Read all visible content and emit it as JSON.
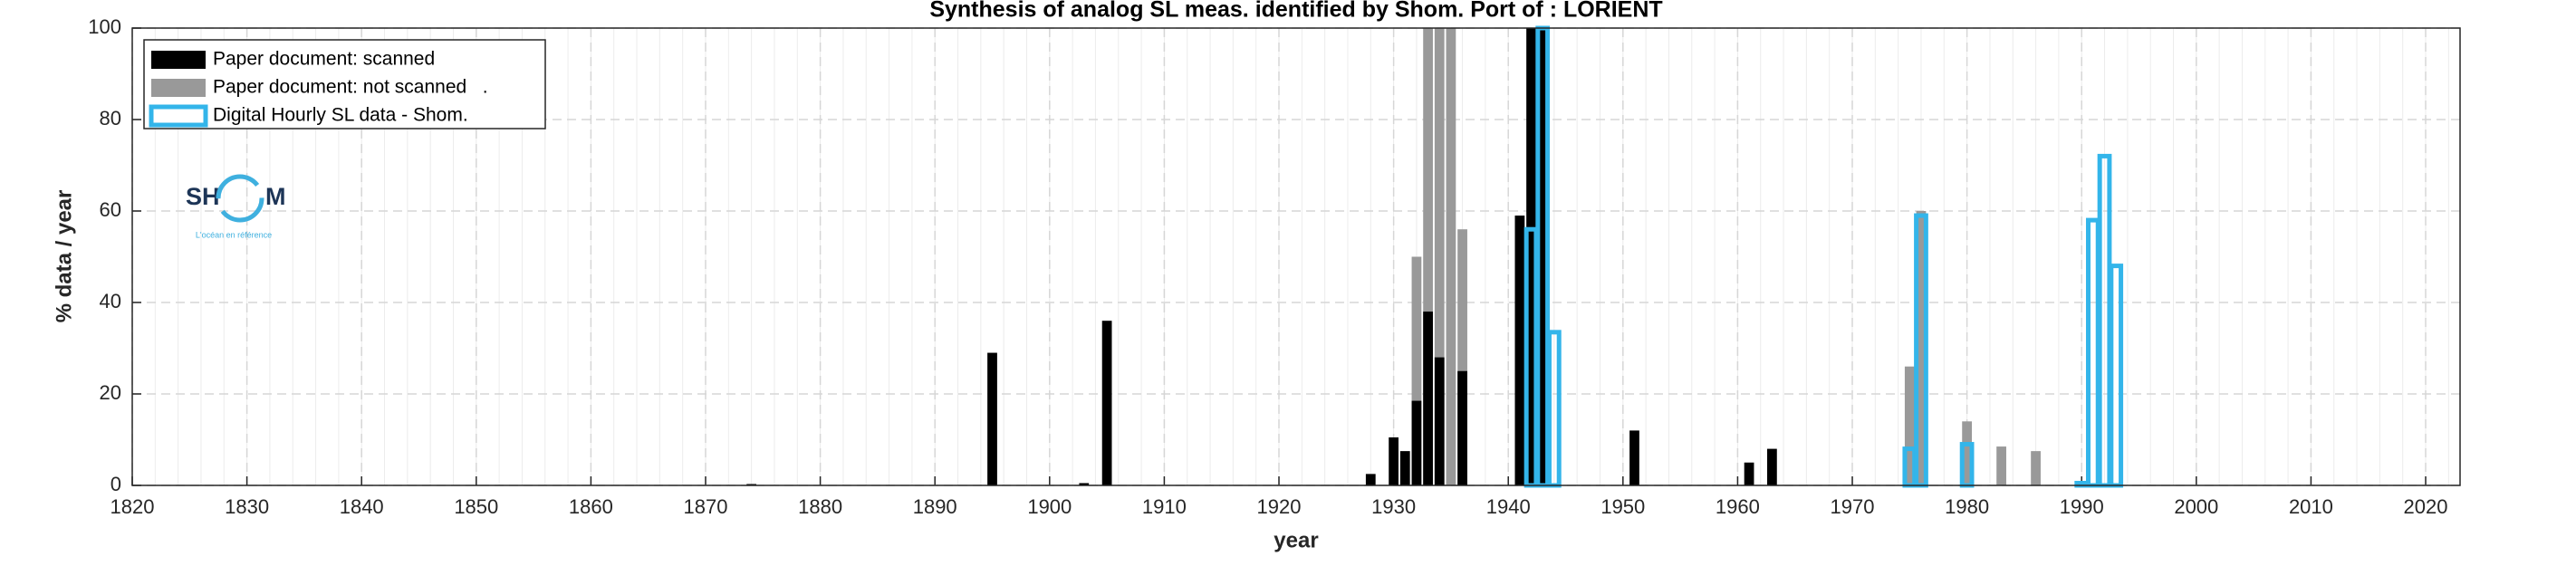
{
  "chart_data": {
    "type": "bar",
    "title": "Synthesis of analog SL meas. identified by Shom. Port of : LORIENT",
    "xlabel": "year",
    "ylabel": "% data / year",
    "xlim": [
      1820,
      2023
    ],
    "ylim": [
      0,
      100
    ],
    "xticks": [
      1820,
      1830,
      1840,
      1850,
      1860,
      1870,
      1880,
      1890,
      1900,
      1910,
      1920,
      1930,
      1940,
      1950,
      1960,
      1970,
      1980,
      1990,
      2000,
      2010,
      2020
    ],
    "yticks": [
      0,
      20,
      40,
      60,
      80,
      100
    ],
    "grid": true,
    "minor_grid": true,
    "legend": "upper left",
    "series": [
      {
        "name": "Paper document: not scanned   .",
        "color": "#999999",
        "style": "filled",
        "x": [
          1932,
          1933,
          1934,
          1935,
          1936,
          1975,
          1976,
          1980,
          1983,
          1986
        ],
        "values": [
          50,
          100,
          100,
          100,
          56,
          26,
          60,
          14,
          8.5,
          7.5
        ]
      },
      {
        "name": "Paper document: scanned",
        "color": "#000000",
        "style": "filled",
        "x": [
          1874,
          1895,
          1903,
          1905,
          1928,
          1930,
          1931,
          1932,
          1933,
          1934,
          1936,
          1941,
          1942,
          1943,
          1951,
          1961,
          1963
        ],
        "values": [
          0.3,
          29,
          0.5,
          36,
          2.5,
          10.5,
          7.5,
          18.5,
          38,
          28,
          25,
          59,
          100,
          100,
          12,
          5,
          8
        ]
      },
      {
        "name": "Digital Hourly SL data - Shom.",
        "color": "#33b5ea",
        "style": "outline",
        "x": [
          1942,
          1943,
          1944,
          1975,
          1976,
          1980,
          1990,
          1991,
          1992,
          1993
        ],
        "values": [
          56,
          100,
          33.5,
          8,
          59,
          9,
          0.5,
          58,
          72,
          48
        ]
      }
    ],
    "legend_order": [
      1,
      0,
      2
    ],
    "logo": {
      "left": "SH",
      "right": "M",
      "tagline": "L'océan en référence"
    }
  }
}
